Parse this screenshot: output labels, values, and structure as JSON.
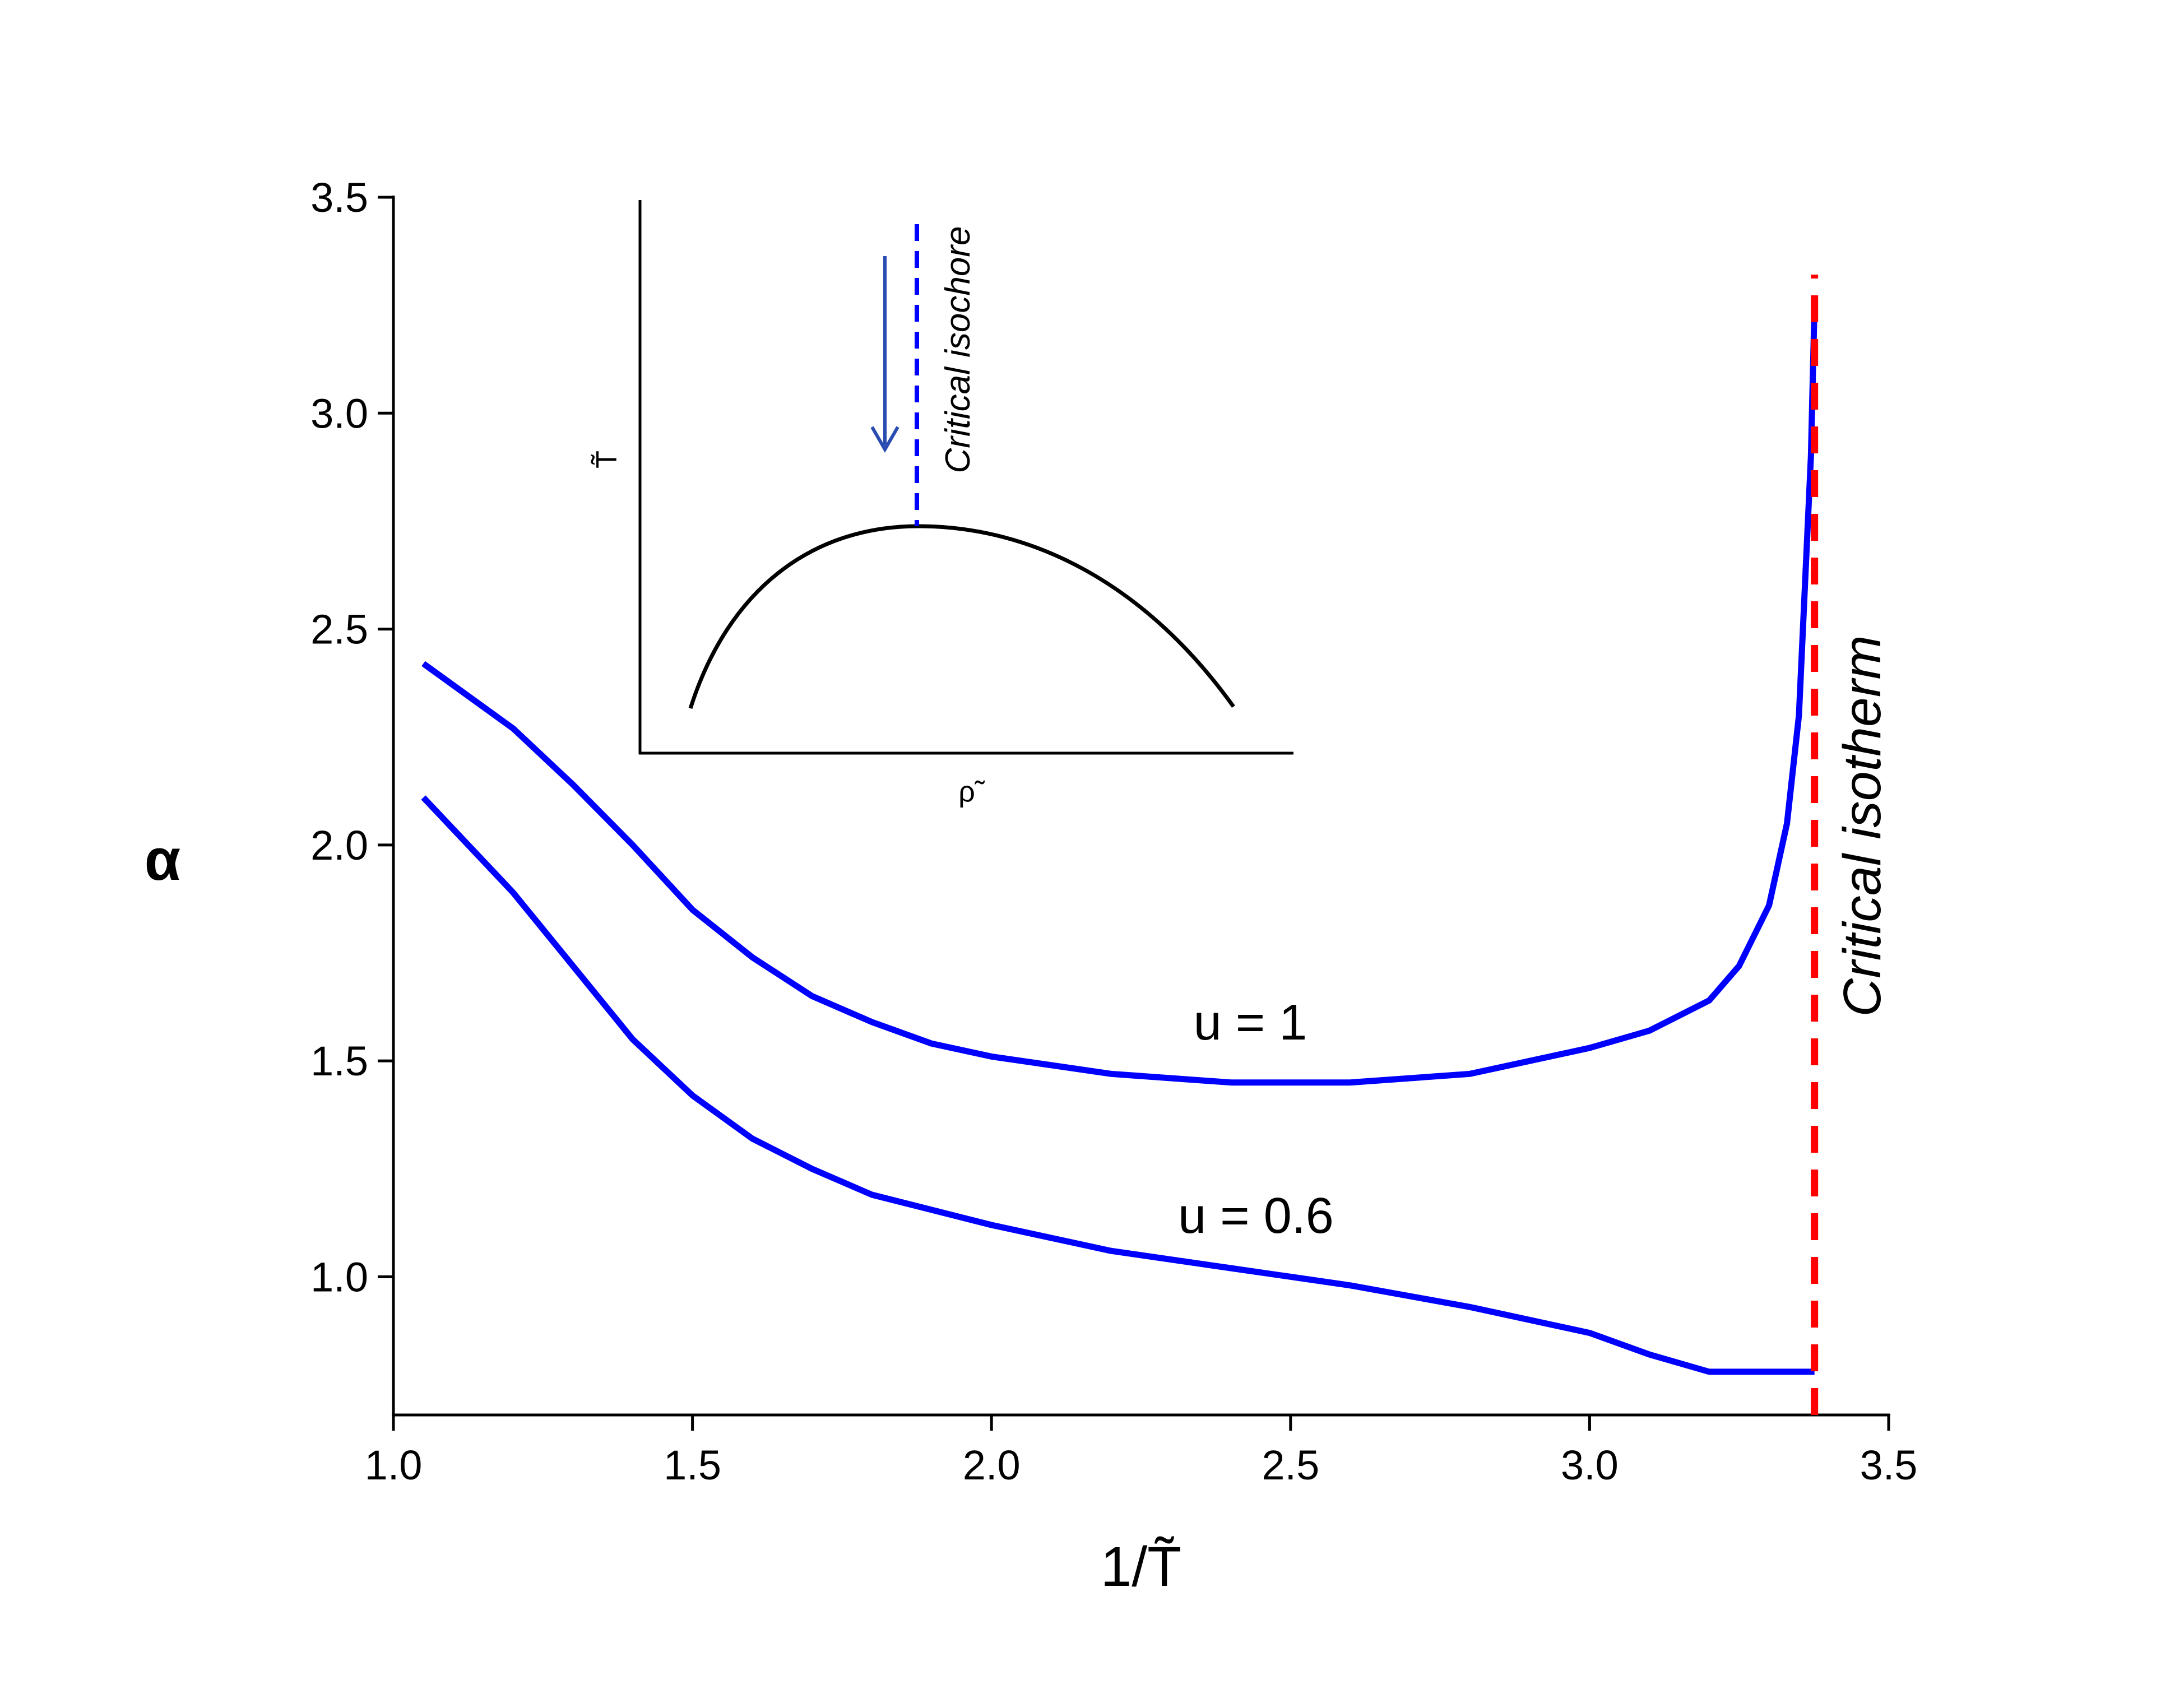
{
  "chart_data": {
    "type": "line",
    "xlabel": "1/T̃",
    "ylabel": "α",
    "xlim": [
      1.0,
      3.5
    ],
    "ylim": [
      0.68,
      3.5
    ],
    "xticks": [
      {
        "value": 1.0,
        "label": "1.0"
      },
      1.5,
      {
        "value": 2.0,
        "label": "2.0"
      },
      2.5,
      {
        "value": 3.0,
        "label": "3.0"
      },
      3.5
    ],
    "yticks": [
      {
        "value": 1.0,
        "label": "1.0"
      },
      1.5,
      {
        "value": 2.0,
        "label": "2.0"
      },
      2.5,
      {
        "value": 3.0,
        "label": "3.0"
      },
      3.5
    ],
    "series": [
      {
        "name": "u = 1",
        "color": "#0000ff",
        "x": [
          1.05,
          1.2,
          1.3,
          1.4,
          1.5,
          1.6,
          1.7,
          1.8,
          1.9,
          2.0,
          2.2,
          2.4,
          2.5,
          2.6,
          2.8,
          3.0,
          3.1,
          3.2,
          3.25,
          3.3,
          3.33,
          3.35,
          3.36,
          3.37,
          3.376
        ],
        "values": [
          2.42,
          2.27,
          2.14,
          2.0,
          1.85,
          1.74,
          1.65,
          1.59,
          1.54,
          1.51,
          1.47,
          1.45,
          1.45,
          1.45,
          1.47,
          1.53,
          1.57,
          1.64,
          1.72,
          1.86,
          2.05,
          2.3,
          2.6,
          2.9,
          3.25
        ]
      },
      {
        "name": "u = 0.6",
        "color": "#0000ff",
        "x": [
          1.05,
          1.2,
          1.3,
          1.4,
          1.5,
          1.6,
          1.7,
          1.8,
          2.0,
          2.2,
          2.4,
          2.6,
          2.8,
          3.0,
          3.1,
          3.2,
          3.3,
          3.376
        ],
        "values": [
          2.11,
          1.89,
          1.72,
          1.55,
          1.42,
          1.32,
          1.25,
          1.19,
          1.12,
          1.06,
          1.02,
          0.98,
          0.93,
          0.87,
          0.82,
          0.78,
          0.78,
          0.78
        ]
      }
    ],
    "critical_isotherm": {
      "label": "Critical isotherm",
      "x": 3.376,
      "color": "#ff0000"
    },
    "inset": {
      "xlabel": "ρ̃",
      "ylabel": "T̃",
      "annotation": "Critical isochore"
    }
  }
}
